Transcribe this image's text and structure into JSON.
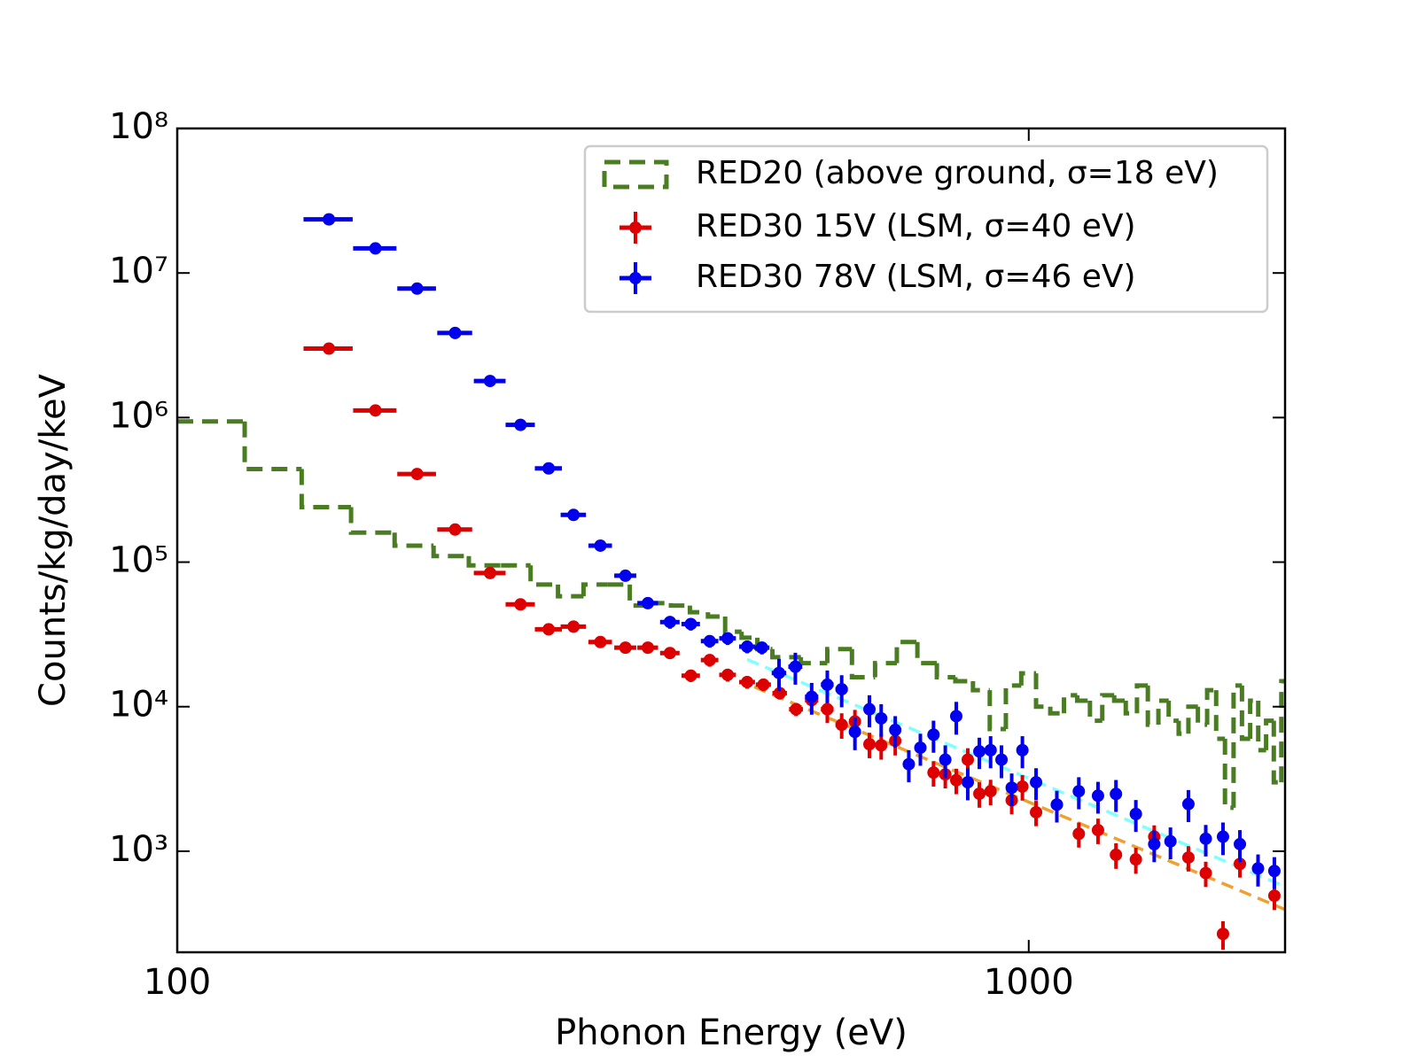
{
  "chart_data": {
    "type": "scatter",
    "xlabel": "Phonon Energy (eV)",
    "ylabel": "Counts/kg/day/keV",
    "log_x": true,
    "log_y": true,
    "xlim": [
      100,
      2000
    ],
    "ylim": [
      200,
      100000000
    ],
    "xticks": [
      100,
      1000
    ],
    "yticks": [
      {
        "value": 1000,
        "label": "10³"
      },
      {
        "value": 10000,
        "label": "10⁴"
      },
      {
        "value": 100000,
        "label": "10⁵"
      },
      {
        "value": 1000000,
        "label": "10⁶"
      },
      {
        "value": 10000000,
        "label": "10⁷"
      },
      {
        "value": 100000000,
        "label": "10⁸"
      }
    ],
    "legend": "upper right",
    "histogram": {
      "name": "RED20 (above ground, σ=18 eV)",
      "color": "#4a7d22",
      "bins": [
        100,
        120,
        140,
        160,
        180,
        200,
        220,
        240,
        260,
        280,
        300,
        320,
        340,
        360,
        380,
        400,
        420,
        440,
        460,
        480,
        500,
        540,
        580,
        620,
        660,
        700,
        740,
        780,
        820,
        860,
        900,
        940,
        980,
        1020,
        1060,
        1100,
        1140,
        1180,
        1220,
        1260,
        1300,
        1340,
        1380,
        1420,
        1460,
        1500,
        1540,
        1580,
        1620,
        1660,
        1700,
        1740,
        1780,
        1820,
        1860,
        1900,
        1940,
        1980,
        2000
      ],
      "values": [
        940000,
        440000,
        240000,
        160000,
        130000,
        110000,
        95000,
        95000,
        70000,
        58000,
        70000,
        70000,
        50000,
        52000,
        50000,
        45000,
        42000,
        33000,
        30000,
        25000,
        22000,
        20000,
        25000,
        16000,
        20000,
        28000,
        20000,
        16000,
        15000,
        13000,
        7000,
        14000,
        17000,
        10000,
        9000,
        12000,
        11000,
        8000,
        12000,
        11000,
        9000,
        14000,
        7500,
        11000,
        8000,
        6500,
        10000,
        7500,
        13000,
        6000,
        2000,
        14000,
        6000,
        11000,
        5000,
        8000,
        3000,
        15000
      ]
    },
    "series": [
      {
        "name": "RED30 15V (LSM, σ=40 eV)",
        "color": "#dd0000",
        "x": [
          150.7,
          170.9,
          191.3,
          212,
          233,
          253,
          273,
          292,
          314,
          336,
          357,
          379,
          401,
          422,
          443,
          467,
          488,
          510,
          533,
          556,
          580,
          603,
          625,
          650,
          671,
          697,
          773,
          798,
          822,
          848,
          875,
          902,
          955,
          983,
          1020,
          1079,
          1145,
          1206,
          1266,
          1336,
          1404,
          1540,
          1614,
          1691,
          1770,
          1943
        ],
        "values": [
          3000000,
          1120000,
          407000,
          168000,
          84000,
          51000,
          34300,
          35800,
          28000,
          25600,
          25600,
          23500,
          16400,
          21000,
          16600,
          14800,
          14200,
          12400,
          9600,
          11100,
          9600,
          7500,
          7900,
          5500,
          5400,
          5800,
          3500,
          3400,
          3100,
          4300,
          2500,
          2600,
          2250,
          2800,
          1860,
          2100,
          1320,
          1400,
          945,
          878,
          1260,
          904,
          706,
          268,
          817,
          492
        ],
        "xerr": [
          10,
          10,
          10,
          10,
          10,
          10,
          10,
          10,
          10,
          10,
          10,
          10,
          10,
          10,
          10,
          10,
          10,
          10,
          10,
          10,
          10,
          10,
          10,
          10,
          10,
          10,
          10,
          10,
          10,
          10,
          10,
          10,
          10,
          10,
          10,
          10,
          10,
          10,
          10,
          10,
          10,
          10,
          10,
          10,
          10,
          10
        ],
        "yerr": [
          0,
          0,
          0,
          0,
          0,
          0,
          0,
          0,
          0,
          0,
          0,
          0,
          1600,
          2100,
          1700,
          1500,
          1400,
          1200,
          1000,
          1100,
          1900,
          1500,
          1600,
          1100,
          1100,
          1200,
          700,
          680,
          620,
          860,
          500,
          520,
          450,
          560,
          370,
          420,
          260,
          280,
          190,
          180,
          250,
          180,
          140,
          60,
          160,
          100
        ]
      },
      {
        "name": "RED30 78V (LSM, σ=46 eV)",
        "color": "#0000ee",
        "x": [
          150.7,
          170.9,
          191.3,
          212,
          233,
          253,
          273,
          292,
          314,
          336,
          357,
          379,
          401,
          422,
          443,
          467,
          486,
          509,
          532,
          556,
          580,
          603,
          625,
          650,
          671,
          697,
          723,
          746,
          773,
          798,
          822,
          848,
          875,
          902,
          929,
          955,
          983,
          1020,
          1079,
          1145,
          1206,
          1266,
          1336,
          1404,
          1467,
          1540,
          1614,
          1691,
          1770,
          1859,
          1943
        ],
        "values": [
          23500000,
          14800000,
          7800000,
          3850000,
          1790000,
          890000,
          445000,
          212000,
          130000,
          80500,
          52000,
          38500,
          37300,
          28400,
          29700,
          26000,
          25600,
          17100,
          18900,
          11700,
          14200,
          13200,
          6700,
          9600,
          8300,
          6900,
          4000,
          5200,
          6400,
          4300,
          8600,
          3000,
          4900,
          5000,
          4300,
          2750,
          5000,
          3000,
          2100,
          2600,
          2420,
          2490,
          1810,
          1120,
          1170,
          2120,
          1220,
          1260,
          1120,
          760,
          730
        ],
        "xerr": [
          10,
          10,
          10,
          10,
          10,
          10,
          10,
          10,
          10,
          10,
          10,
          10,
          10,
          10,
          10,
          10,
          10,
          10,
          10,
          10,
          10,
          10,
          10,
          10,
          10,
          10,
          10,
          10,
          10,
          10,
          10,
          10,
          10,
          10,
          10,
          10,
          10,
          10,
          10,
          10,
          10,
          10,
          10,
          10,
          10,
          10,
          10,
          10,
          10,
          10,
          10
        ],
        "yerr": [
          0,
          0,
          0,
          0,
          0,
          0,
          0,
          0,
          0,
          0,
          0,
          3900,
          3700,
          2800,
          3000,
          2600,
          2600,
          4300,
          4700,
          2900,
          3600,
          3300,
          1700,
          2400,
          2100,
          1700,
          1000,
          1300,
          1600,
          1100,
          2200,
          750,
          1200,
          1250,
          1100,
          700,
          1250,
          750,
          520,
          650,
          600,
          620,
          450,
          280,
          290,
          530,
          300,
          320,
          280,
          190,
          180
        ]
      }
    ],
    "fits": [
      {
        "color": "#f0a030",
        "x": [
          476,
          2000
        ],
        "values": [
          13700,
          395
        ]
      },
      {
        "color": "#80ffff",
        "x": [
          467,
          2000
        ],
        "values": [
          21200,
          570
        ]
      }
    ]
  }
}
